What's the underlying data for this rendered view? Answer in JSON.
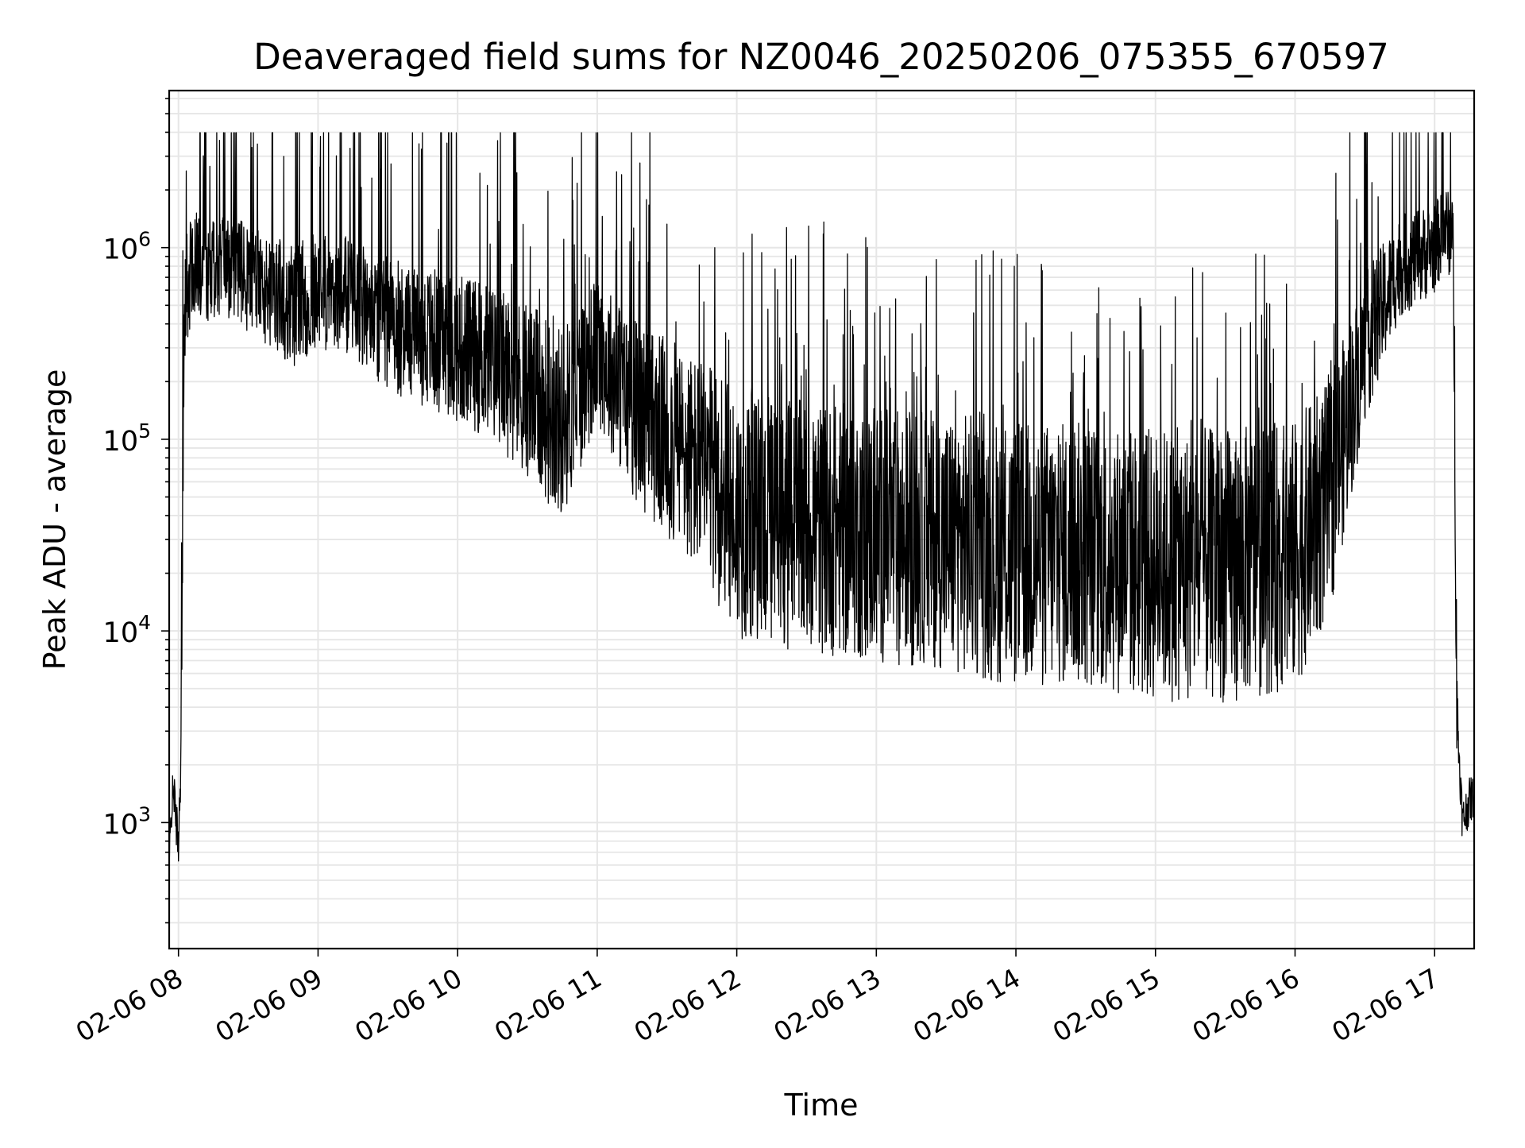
{
  "chart_data": {
    "type": "line",
    "title": "Deaveraged field sums for NZ0046_20250206_075355_670597",
    "xlabel": "Time",
    "ylabel": "Peak ADU - average",
    "yscale": "log",
    "ylim": [
      220,
      6600000
    ],
    "xlim": [
      "2025-02-06 07:56",
      "2025-02-06 17:17"
    ],
    "grid": true,
    "legend": "none",
    "line_color": "#000000",
    "x_tick_labels": [
      {
        "t": "2025-02-06 08:00",
        "label": "02-06 08"
      },
      {
        "t": "2025-02-06 09:00",
        "label": "02-06 09"
      },
      {
        "t": "2025-02-06 10:00",
        "label": "02-06 10"
      },
      {
        "t": "2025-02-06 11:00",
        "label": "02-06 11"
      },
      {
        "t": "2025-02-06 12:00",
        "label": "02-06 12"
      },
      {
        "t": "2025-02-06 13:00",
        "label": "02-06 13"
      },
      {
        "t": "2025-02-06 14:00",
        "label": "02-06 14"
      },
      {
        "t": "2025-02-06 15:00",
        "label": "02-06 15"
      },
      {
        "t": "2025-02-06 16:00",
        "label": "02-06 16"
      },
      {
        "t": "2025-02-06 17:00",
        "label": "02-06 17"
      }
    ],
    "y_tick_labels": [
      {
        "value": 1000,
        "base": "10",
        "exp": "3"
      },
      {
        "value": 10000,
        "base": "10",
        "exp": "4"
      },
      {
        "value": 100000,
        "base": "10",
        "exp": "5"
      },
      {
        "value": 1000000,
        "base": "10",
        "exp": "6"
      }
    ],
    "series": [
      {
        "x": [
          "2025-02-06 07:56",
          "2025-02-06 07:57",
          "2025-02-06 07:58",
          "2025-02-06 07:59",
          "2025-02-06 08:00",
          "2025-02-06 08:01",
          "2025-02-06 08:02",
          "2025-02-06 08:03",
          "2025-02-06 08:04",
          "2025-02-06 08:06",
          "2025-02-06 08:08",
          "2025-02-06 08:10",
          "2025-02-06 08:15",
          "2025-02-06 08:20",
          "2025-02-06 08:30",
          "2025-02-06 08:40",
          "2025-02-06 08:50",
          "2025-02-06 09:00",
          "2025-02-06 09:15",
          "2025-02-06 09:30",
          "2025-02-06 09:45",
          "2025-02-06 10:00",
          "2025-02-06 10:15",
          "2025-02-06 10:30",
          "2025-02-06 10:45",
          "2025-02-06 11:00",
          "2025-02-06 11:15",
          "2025-02-06 11:30",
          "2025-02-06 11:45",
          "2025-02-06 12:00",
          "2025-02-06 12:30",
          "2025-02-06 13:00",
          "2025-02-06 13:30",
          "2025-02-06 14:00",
          "2025-02-06 14:30",
          "2025-02-06 15:00",
          "2025-02-06 15:30",
          "2025-02-06 16:00",
          "2025-02-06 16:15",
          "2025-02-06 16:30",
          "2025-02-06 16:45",
          "2025-02-06 17:00",
          "2025-02-06 17:05",
          "2025-02-06 17:08",
          "2025-02-06 17:10",
          "2025-02-06 17:12",
          "2025-02-06 17:15",
          "2025-02-06 17:17"
        ],
        "y": [
          600,
          1200,
          1500,
          1000,
          800,
          2000,
          150000,
          500000,
          650000,
          800000,
          850000,
          800000,
          750000,
          800000,
          700000,
          600000,
          500000,
          600000,
          550000,
          400000,
          350000,
          300000,
          250000,
          180000,
          120000,
          300000,
          150000,
          100000,
          70000,
          40000,
          35000,
          32000,
          30000,
          25000,
          25000,
          22000,
          22000,
          25000,
          50000,
          300000,
          800000,
          1000000,
          1300000,
          1000000,
          3000,
          1000,
          1300,
          1400
        ]
      }
    ]
  }
}
